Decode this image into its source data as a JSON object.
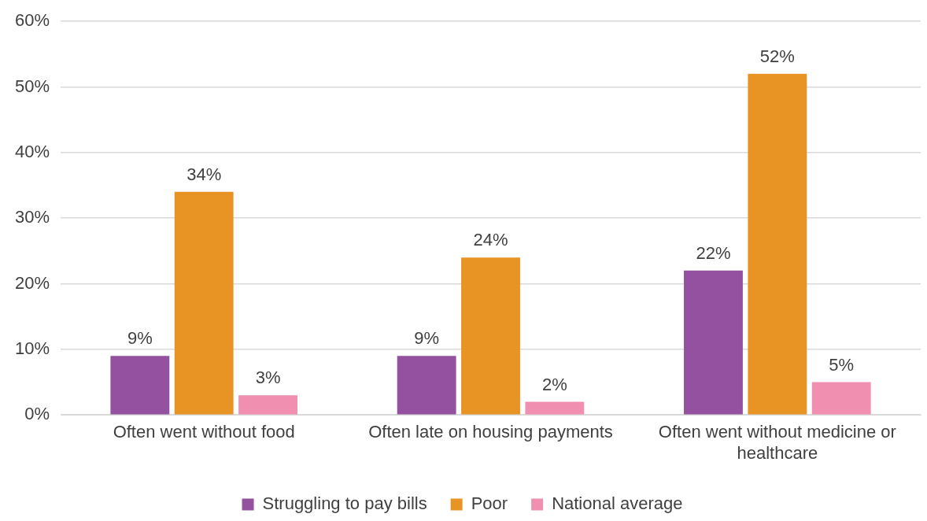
{
  "chart_data": {
    "type": "bar",
    "categories": [
      "Often went without food",
      "Often late on housing payments",
      "Often went without medicine or healthcare"
    ],
    "series": [
      {
        "name": "Struggling to pay bills",
        "color": "#9351a0",
        "values": [
          9,
          9,
          22
        ],
        "value_labels": [
          "9%",
          "9%",
          "22%"
        ]
      },
      {
        "name": "Poor",
        "color": "#e89424",
        "values": [
          34,
          24,
          52
        ],
        "value_labels": [
          "34%",
          "24%",
          "52%"
        ]
      },
      {
        "name": "National average",
        "color": "#f08fb0",
        "values": [
          3,
          2,
          5
        ],
        "value_labels": [
          "3%",
          "2%",
          "5%"
        ]
      }
    ],
    "ylim": [
      0,
      60
    ],
    "yticks": [
      {
        "value": 0,
        "label": "0%"
      },
      {
        "value": 10,
        "label": "10%"
      },
      {
        "value": 20,
        "label": "20%"
      },
      {
        "value": 30,
        "label": "30%"
      },
      {
        "value": 40,
        "label": "40%"
      },
      {
        "value": 50,
        "label": "50%"
      },
      {
        "value": 60,
        "label": "60%"
      }
    ],
    "grid": "y",
    "legend": "bottom"
  }
}
